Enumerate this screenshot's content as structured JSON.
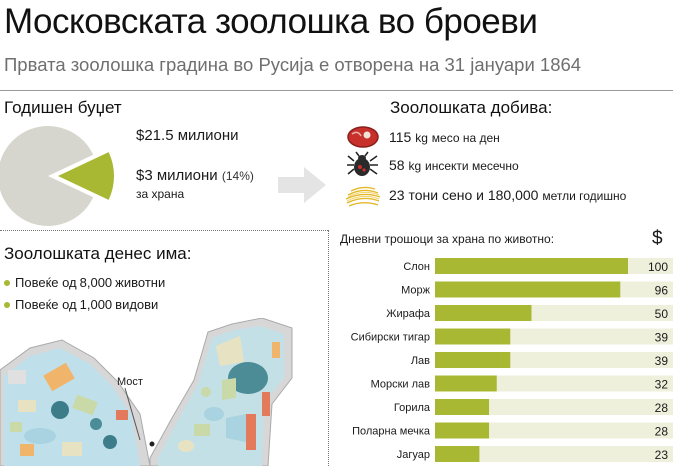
{
  "header": {
    "title": "Московската зоолошка во броеви",
    "subtitle": "Првата зоолошка градина во Русија е отворена на 31 јануари 1864"
  },
  "budget": {
    "heading": "Годишен буџет",
    "total_label": "$21.5 милиони",
    "food_label": "$3 милиони",
    "food_pct": "(14%)",
    "food_sub": "за храна",
    "food_share_pct": 14,
    "colors": {
      "total": "#d6d6ce",
      "food": "#a8b832"
    }
  },
  "gets": {
    "heading": "Зоолошката добива:",
    "items": [
      {
        "icon": "meat-icon",
        "num": "115",
        "unit": "kg",
        "rest": "месо на ден"
      },
      {
        "icon": "insect-icon",
        "num": "58",
        "unit": "kg",
        "rest": "инсекти месечно"
      },
      {
        "icon": "hay-icon",
        "num": "23 тони сено и 180,000",
        "unit": "",
        "rest": "метли годишно"
      }
    ]
  },
  "zoo_today": {
    "heading": "Зоолошката денес има:",
    "bullets": [
      {
        "pre": "Повеќе од ",
        "num": "8,000",
        "post": " животни"
      },
      {
        "pre": "Повеќе од ",
        "num": "1,000",
        "post": " видови"
      }
    ],
    "map_label": "Мост"
  },
  "chart_data": {
    "type": "bar",
    "title": "Дневни трошоци за храна по животно:",
    "unit": "$",
    "categories": [
      "Слон",
      "Морж",
      "Жирафа",
      "Сибирски тигар",
      "Лав",
      "Морски лав",
      "Горила",
      "Поларна мечка",
      "Јагуар"
    ],
    "values": [
      100,
      96,
      50,
      39,
      39,
      32,
      28,
      28,
      23
    ],
    "xlim": [
      0,
      100
    ],
    "colors": {
      "bar": "#a8b832",
      "track": "#eef0dc"
    }
  }
}
